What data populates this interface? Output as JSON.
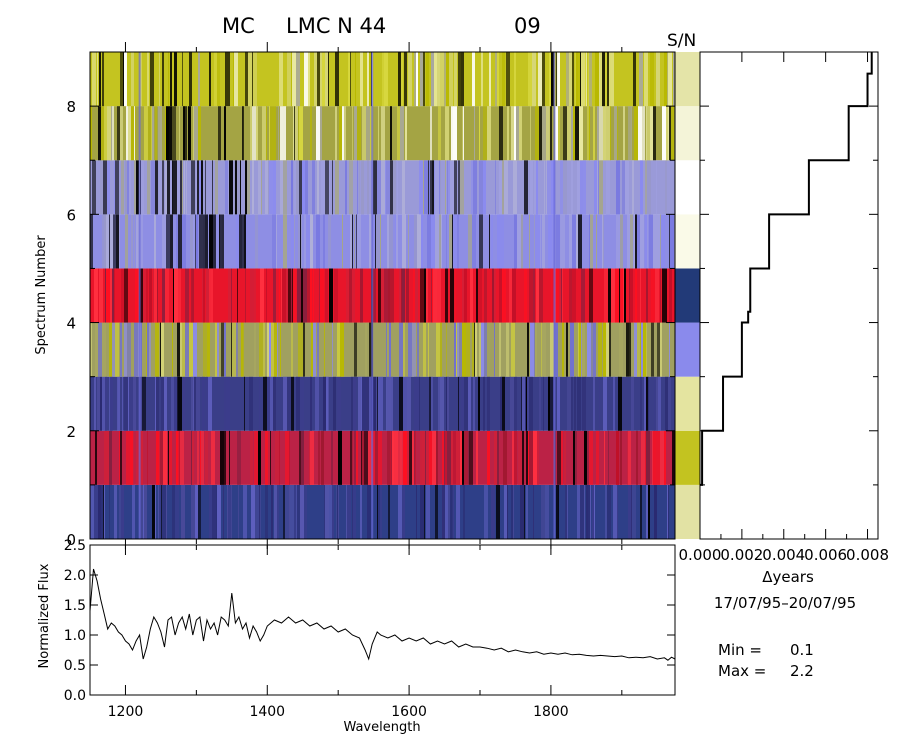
{
  "title": {
    "prefix": "MC",
    "object": "LMC N 44",
    "dataset": "09"
  },
  "sn_label": "S/N",
  "summary": {
    "min_label": "Min =",
    "min_value": "0.1",
    "max_label": "Max =",
    "max_value": "2.2"
  },
  "date_range": "17/07/95–20/07/95",
  "colors": {
    "yellow": "#b8b800",
    "pale_yellow": "#d6d678",
    "white": "#ffffff",
    "light_blue": "#8a8af0",
    "blue": "#3c3c8c",
    "dark_blue": "#2a2a70",
    "red": "#ff1020",
    "black": "#000000"
  },
  "chart_data": [
    {
      "type": "heatmap",
      "name": "spectral-image",
      "ylabel": "Spectrum Number",
      "ylim": [
        0,
        9
      ],
      "yticks": [
        0,
        2,
        4,
        6,
        8
      ],
      "xlim": [
        1150,
        1975
      ],
      "rows": [
        {
          "spectrum": 0,
          "base": "#2e3f88",
          "pattern": "blue",
          "sn_color": "#e2e2a4"
        },
        {
          "spectrum": 1,
          "base": "#bb2246",
          "pattern": "red",
          "sn_color": "#c3c320"
        },
        {
          "spectrum": 2,
          "base": "#3a3e88",
          "pattern": "blue",
          "sn_color": "#e4e4a0"
        },
        {
          "spectrum": 3,
          "base": "#a0a060",
          "pattern": "mixed",
          "sn_color": "#8a8aec"
        },
        {
          "spectrum": 4,
          "base": "#e8152a",
          "pattern": "red",
          "sn_color": "#223a78"
        },
        {
          "spectrum": 5,
          "base": "#8e8ee4",
          "pattern": "light",
          "sn_color": "#fafae8"
        },
        {
          "spectrum": 6,
          "base": "#9a9ad8",
          "pattern": "light",
          "sn_color": "#ffffff"
        },
        {
          "spectrum": 7,
          "base": "#a4a444",
          "pattern": "yellow",
          "sn_color": "#f4f4d8"
        },
        {
          "spectrum": 8,
          "base": "#c4c420",
          "pattern": "yellow",
          "sn_color": "#e4e4a8"
        }
      ]
    },
    {
      "type": "line",
      "name": "time-steps",
      "xlabel": "Δyears",
      "xlim": [
        0,
        0.0085
      ],
      "xticks": [
        0.0,
        0.002,
        0.004,
        0.006,
        0.008
      ],
      "xtick_labels": [
        "0.000",
        "0.002",
        "0.004",
        "0.006",
        "0.008"
      ],
      "ylim": [
        0,
        9
      ],
      "steps": [
        {
          "y0": 1,
          "y1": 2,
          "x": 0.0001
        },
        {
          "y0": 2,
          "y1": 3,
          "x": 0.0011
        },
        {
          "y0": 3,
          "y1": 4,
          "x": 0.002
        },
        {
          "y0": 4,
          "y1": 4.2,
          "x": 0.0023
        },
        {
          "y0": 4.2,
          "y1": 5,
          "x": 0.0024
        },
        {
          "y0": 5,
          "y1": 6,
          "x": 0.0033
        },
        {
          "y0": 6,
          "y1": 7,
          "x": 0.0052
        },
        {
          "y0": 7,
          "y1": 8,
          "x": 0.0071
        },
        {
          "y0": 8,
          "y1": 8.6,
          "x": 0.008
        },
        {
          "y0": 8.6,
          "y1": 9,
          "x": 0.0082
        }
      ]
    },
    {
      "type": "line",
      "name": "mean-spectrum",
      "xlabel": "Wavelength",
      "ylabel": "Normalized Flux",
      "xlim": [
        1150,
        1975
      ],
      "ylim": [
        0.0,
        2.5
      ],
      "xticks": [
        1200,
        1400,
        1600,
        1800
      ],
      "yticks": [
        0.0,
        0.5,
        1.0,
        1.5,
        2.0,
        2.5
      ],
      "ytick_labels": [
        "0.0",
        "0.5",
        "1.0",
        "1.5",
        "2.0",
        "2.5"
      ],
      "x": [
        1150,
        1155,
        1160,
        1165,
        1170,
        1175,
        1180,
        1185,
        1190,
        1195,
        1200,
        1205,
        1210,
        1215,
        1220,
        1225,
        1230,
        1235,
        1240,
        1245,
        1250,
        1255,
        1260,
        1265,
        1270,
        1275,
        1280,
        1285,
        1290,
        1295,
        1300,
        1305,
        1310,
        1315,
        1320,
        1325,
        1330,
        1335,
        1340,
        1345,
        1350,
        1355,
        1360,
        1365,
        1370,
        1375,
        1380,
        1385,
        1390,
        1395,
        1400,
        1410,
        1420,
        1430,
        1440,
        1450,
        1460,
        1470,
        1480,
        1490,
        1500,
        1510,
        1520,
        1530,
        1538,
        1543,
        1548,
        1555,
        1560,
        1570,
        1580,
        1590,
        1600,
        1610,
        1620,
        1630,
        1640,
        1650,
        1660,
        1670,
        1680,
        1690,
        1700,
        1710,
        1720,
        1730,
        1740,
        1750,
        1760,
        1770,
        1780,
        1790,
        1800,
        1810,
        1820,
        1830,
        1840,
        1850,
        1860,
        1870,
        1880,
        1890,
        1900,
        1910,
        1920,
        1930,
        1940,
        1950,
        1960,
        1965,
        1970,
        1975
      ],
      "y": [
        1.4,
        2.1,
        1.9,
        1.6,
        1.35,
        1.1,
        1.2,
        1.15,
        1.05,
        1.0,
        0.9,
        0.85,
        0.75,
        0.9,
        1.0,
        0.6,
        0.8,
        1.1,
        1.3,
        1.2,
        1.05,
        0.8,
        1.25,
        1.3,
        1.0,
        1.2,
        1.3,
        1.1,
        1.35,
        1.0,
        1.25,
        1.3,
        0.9,
        1.25,
        1.1,
        1.2,
        1.0,
        1.3,
        1.25,
        1.15,
        1.7,
        1.2,
        1.3,
        1.1,
        1.2,
        0.95,
        1.15,
        1.05,
        0.9,
        1.0,
        1.15,
        1.25,
        1.2,
        1.3,
        1.2,
        1.25,
        1.15,
        1.2,
        1.1,
        1.15,
        1.05,
        1.1,
        1.0,
        0.95,
        0.75,
        0.6,
        0.85,
        1.05,
        1.0,
        0.95,
        1.0,
        0.9,
        0.95,
        0.9,
        0.95,
        0.85,
        0.9,
        0.85,
        0.9,
        0.8,
        0.85,
        0.8,
        0.8,
        0.78,
        0.75,
        0.78,
        0.72,
        0.75,
        0.72,
        0.7,
        0.72,
        0.68,
        0.7,
        0.68,
        0.7,
        0.67,
        0.68,
        0.66,
        0.65,
        0.66,
        0.65,
        0.64,
        0.65,
        0.62,
        0.63,
        0.62,
        0.64,
        0.6,
        0.62,
        0.58,
        0.63,
        0.6
      ]
    }
  ]
}
